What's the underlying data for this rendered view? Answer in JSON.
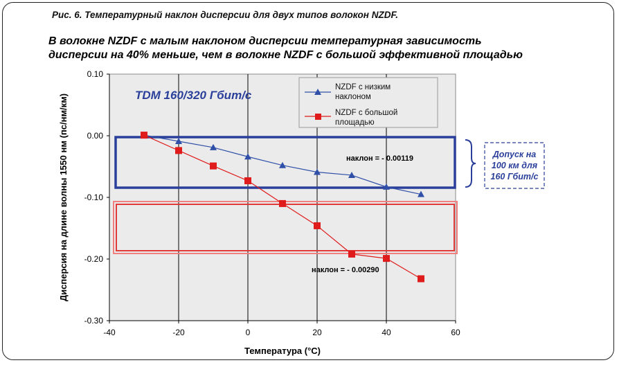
{
  "figure": {
    "caption": "Рис. 6. Температурный наклон дисперсии для двух типов волокон NZDF.",
    "subtitle_line1": "В волокне NZDF с малым наклоном дисперсии температурная зависимость",
    "subtitle_line2": "дисперсии на 40% меньше, чем в волокне NZDF с большой эффективной площадью"
  },
  "annotations": {
    "tdm_label": "TDM 160/320 Гбит/с",
    "slope_low": "наклон = - 0.00119",
    "slope_high": "наклон = - 0.00290",
    "tolerance_line1": "Допуск на",
    "tolerance_line2": "100 км для",
    "tolerance_line3": "160 Гбит/с"
  },
  "colors": {
    "series_low": "#2f4fa8",
    "series_high": "#e01b1b",
    "box_blue": "#2a3f9a",
    "box_red": "#e03a3a",
    "plot_bg": "#ebebeb"
  },
  "chart_data": {
    "type": "line",
    "xlabel": "Температура (°C)",
    "ylabel": "Дисперсия на длине волны 1550 нм (пс/нм/км)",
    "xlim": [
      -40,
      60
    ],
    "ylim": [
      -0.3,
      0.1
    ],
    "xticks": [
      -40,
      -20,
      0,
      20,
      40,
      60
    ],
    "xtick_labels": [
      "-40",
      "-20",
      "0",
      "20",
      "40",
      "60"
    ],
    "yticks": [
      0.1,
      0.0,
      -0.1,
      -0.2,
      -0.3
    ],
    "ytick_labels": [
      "0.10",
      "0.00",
      "-0.10",
      "-0.20",
      "-0.30"
    ],
    "grid": "vertical",
    "legend_position": "top-right",
    "series": [
      {
        "name_line1": "NZDF с низким",
        "name_line2": "наклоном",
        "marker": "triangle",
        "x": [
          -30,
          -20,
          -10,
          0,
          10,
          20,
          30,
          40,
          50
        ],
        "y": [
          0.001,
          -0.009,
          -0.019,
          -0.034,
          -0.048,
          -0.059,
          -0.064,
          -0.083,
          -0.095
        ]
      },
      {
        "name_line1": "NZDF с большой",
        "name_line2": "площадью",
        "marker": "square",
        "x": [
          -30,
          -20,
          -10,
          0,
          10,
          20,
          30,
          40,
          50
        ],
        "y": [
          0.001,
          -0.024,
          -0.049,
          -0.073,
          -0.11,
          -0.146,
          -0.192,
          -0.199,
          -0.232
        ]
      }
    ]
  }
}
